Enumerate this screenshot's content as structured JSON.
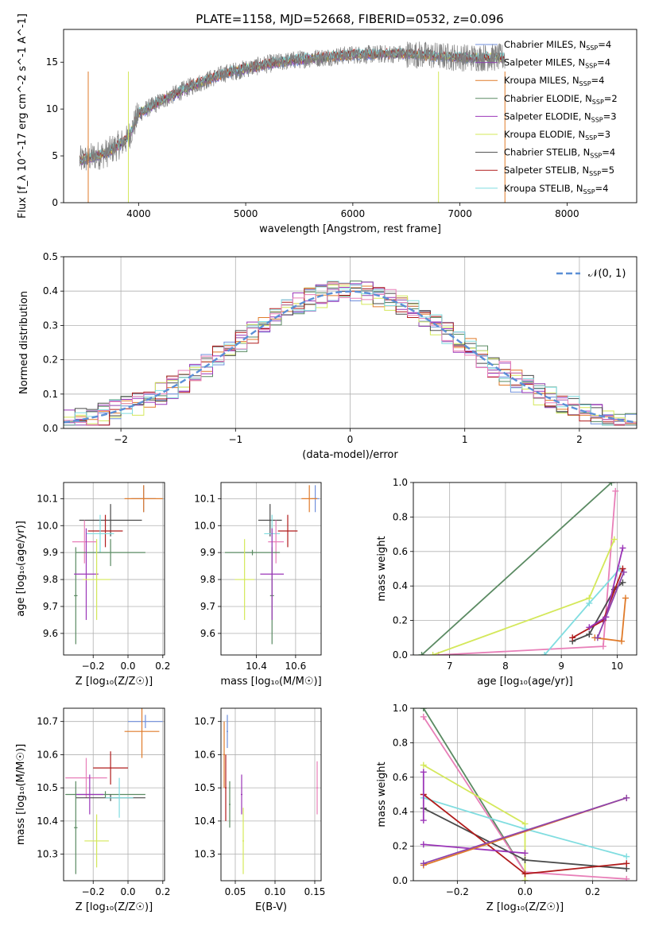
{
  "title": "PLATE=1158, MJD=52668, FIBERID=0532, z=0.096",
  "colors": {
    "Chabrier MILES": "#6f8fdc",
    "Salpeter MILES": "#8e44ad",
    "Kroupa MILES": "#e07b2a",
    "Chabrier ELODIE": "#5a8a62",
    "Salpeter ELODIE": "#9b36b8",
    "Kroupa ELODIE": "#d4e85a",
    "Chabrier STELIB": "#4a4a4a",
    "Salpeter STELIB": "#b01c1c",
    "Kroupa STELIB": "#80dde0",
    "data": "#808080",
    "norm": "#5b8fd6",
    "pink": "#e87fb8"
  },
  "chart_data": [
    {
      "id": "spectrum",
      "type": "line",
      "xlabel": "wavelength [Angstrom, rest frame]",
      "ylabel": "Flux [f_λ 10^-17 erg cm^-2 s^-1 A^-1]",
      "xlim": [
        3300,
        8650
      ],
      "ylim": [
        0,
        18.5
      ],
      "xticks": [
        "4000",
        "5000",
        "6000",
        "7000",
        "8000"
      ],
      "yticks": [
        "0",
        "5",
        "10",
        "15"
      ],
      "legend": [
        {
          "label": "Chabrier MILES, N",
          "sub": "SSP",
          "suf": "=4",
          "color": "#6f8fdc"
        },
        {
          "label": "Salpeter MILES, N",
          "sub": "SSP",
          "suf": "=4",
          "color": "#8e44ad"
        },
        {
          "label": "Kroupa MILES, N",
          "sub": "SSP",
          "suf": "=4",
          "color": "#e07b2a"
        },
        {
          "label": "Chabrier ELODIE, N",
          "sub": "SSP",
          "suf": "=2",
          "color": "#5a8a62"
        },
        {
          "label": "Salpeter ELODIE, N",
          "sub": "SSP",
          "suf": "=3",
          "color": "#9b36b8"
        },
        {
          "label": "Kroupa ELODIE, N",
          "sub": "SSP",
          "suf": "=3",
          "color": "#d4e85a"
        },
        {
          "label": "Chabrier STELIB, N",
          "sub": "SSP",
          "suf": "=4",
          "color": "#4a4a4a"
        },
        {
          "label": "Salpeter STELIB, N",
          "sub": "SSP",
          "suf": "=5",
          "color": "#b01c1c"
        },
        {
          "label": "Kroupa STELIB, N",
          "sub": "SSP",
          "suf": "=4",
          "color": "#80dde0"
        }
      ],
      "continuum": [
        [
          3450,
          4.5
        ],
        [
          3700,
          5.3
        ],
        [
          3900,
          6.8
        ],
        [
          4000,
          9.5
        ],
        [
          4200,
          10.8
        ],
        [
          4500,
          12.5
        ],
        [
          4800,
          13.8
        ],
        [
          5000,
          14.3
        ],
        [
          5200,
          14.8
        ],
        [
          5500,
          15.3
        ],
        [
          6000,
          15.8
        ],
        [
          6500,
          15.9
        ],
        [
          7000,
          15.5
        ],
        [
          7300,
          15.5
        ],
        [
          7420,
          15.5
        ]
      ],
      "data_extent": [
        3450,
        7420
      ]
    },
    {
      "id": "residuals",
      "type": "line",
      "xlabel": "(data-model)/error",
      "ylabel": "Normed distribution",
      "xlim": [
        -2.5,
        2.5
      ],
      "ylim": [
        0,
        0.5
      ],
      "xticks": [
        "−2",
        "−1",
        "0",
        "1",
        "2"
      ],
      "yticks": [
        "0.0",
        "0.1",
        "0.2",
        "0.3",
        "0.4",
        "0.5"
      ],
      "legend_label": "𝒩(0, 1)",
      "bin_width": 0.1
    },
    {
      "id": "age-vs-Z",
      "type": "scatter",
      "xlabel": "Z [log₁₀(Z/Z☉)]",
      "ylabel": "age  [log₁₀(age/yr)]",
      "xlim": [
        -0.37,
        0.21
      ],
      "ylim": [
        9.52,
        10.16
      ],
      "xticks": [
        "−0.2",
        "0.0",
        "0.2"
      ],
      "yticks": [
        "9.6",
        "9.7",
        "9.8",
        "9.9",
        "10.0",
        "10.1"
      ],
      "points": [
        {
          "model": "Chabrier MILES",
          "x": 0.09,
          "xerr": 0.07,
          "y": 10.1,
          "yerr": 0.05
        },
        {
          "model": "Kroupa MILES",
          "x": 0.09,
          "xerr": 0.11,
          "y": 10.1,
          "yerr": 0.05
        },
        {
          "model": "Chabrier STELIB",
          "x": -0.1,
          "xerr": 0.18,
          "y": 10.02,
          "yerr": 0.06
        },
        {
          "model": "Salpeter STELIB",
          "x": -0.13,
          "xerr": 0.1,
          "y": 9.98,
          "yerr": 0.06
        },
        {
          "model": "Kroupa STELIB",
          "x": -0.16,
          "xerr": 0.08,
          "y": 9.97,
          "yerr": 0.07
        },
        {
          "model": "pink",
          "x": -0.25,
          "xerr": 0.07,
          "y": 9.94,
          "yerr": 0.08
        },
        {
          "model": "Chabrier ELODIE",
          "x": -0.1,
          "xerr": 0.2,
          "y": 9.9,
          "yerr": 0.05
        },
        {
          "model": "Chabrier ELODIE",
          "x": -0.3,
          "xerr": 0.01,
          "y": 9.74,
          "yerr": 0.18
        },
        {
          "model": "Salpeter ELODIE",
          "x": -0.24,
          "xerr": 0.07,
          "y": 9.82,
          "yerr": 0.17
        },
        {
          "model": "Kroupa ELODIE",
          "x": -0.18,
          "xerr": 0.08,
          "y": 9.8,
          "yerr": 0.15
        }
      ]
    },
    {
      "id": "age-vs-mass",
      "type": "scatter",
      "xlabel": "mass [log₁₀(M/M☉)]",
      "ylabel": "",
      "xlim": [
        10.22,
        10.73
      ],
      "ylim": [
        9.52,
        10.16
      ],
      "xticks": [
        "10.4",
        "10.6"
      ],
      "yticks": [
        "9.6",
        "9.7",
        "9.8",
        "9.9",
        "10.0",
        "10.1"
      ],
      "points": [
        {
          "model": "Chabrier MILES",
          "x": 10.7,
          "xerr": 0.02,
          "y": 10.1,
          "yerr": 0.05
        },
        {
          "model": "Kroupa MILES",
          "x": 10.67,
          "xerr": 0.04,
          "y": 10.1,
          "yerr": 0.05
        },
        {
          "model": "Chabrier STELIB",
          "x": 10.47,
          "xerr": 0.06,
          "y": 10.02,
          "yerr": 0.06
        },
        {
          "model": "Salpeter STELIB",
          "x": 10.56,
          "xerr": 0.05,
          "y": 9.98,
          "yerr": 0.06
        },
        {
          "model": "Kroupa STELIB",
          "x": 10.48,
          "xerr": 0.04,
          "y": 9.97,
          "yerr": 0.07
        },
        {
          "model": "pink",
          "x": 10.5,
          "xerr": 0.04,
          "y": 9.94,
          "yerr": 0.08
        },
        {
          "model": "Chabrier ELODIE",
          "x": 10.48,
          "xerr": 0.01,
          "y": 9.74,
          "yerr": 0.18
        },
        {
          "model": "Chabrier ELODIE",
          "x": 10.38,
          "xerr": 0.14,
          "y": 9.9,
          "yerr": 0.01
        },
        {
          "model": "Salpeter ELODIE",
          "x": 10.48,
          "xerr": 0.06,
          "y": 9.82,
          "yerr": 0.17
        },
        {
          "model": "Kroupa ELODIE",
          "x": 10.34,
          "xerr": 0.05,
          "y": 9.8,
          "yerr": 0.15
        }
      ]
    },
    {
      "id": "mass-weight-vs-age",
      "type": "line",
      "xlabel": "age  [log₁₀(age/yr)]",
      "ylabel": "mass weight",
      "xlim": [
        6.35,
        10.35
      ],
      "ylim": [
        0,
        1
      ],
      "xticks": [
        "7",
        "8",
        "9",
        "10"
      ],
      "yticks": [
        "0.0",
        "0.2",
        "0.4",
        "0.6",
        "0.8",
        "1.0"
      ],
      "series": [
        {
          "model": "Chabrier ELODIE",
          "x": [
            6.5,
            9.9
          ],
          "y": [
            0.0,
            1.0
          ]
        },
        {
          "model": "pink",
          "x": [
            6.8,
            9.75,
            9.97
          ],
          "y": [
            0.0,
            0.05,
            0.95
          ]
        },
        {
          "model": "Kroupa ELODIE",
          "x": [
            6.7,
            9.5,
            9.95
          ],
          "y": [
            0.0,
            0.33,
            0.67
          ]
        },
        {
          "model": "Kroupa STELIB",
          "x": [
            8.7,
            9.5,
            10.05
          ],
          "y": [
            0.0,
            0.3,
            0.5
          ]
        },
        {
          "model": "Chabrier STELIB",
          "x": [
            9.2,
            9.5,
            9.95,
            10.1
          ],
          "y": [
            0.08,
            0.12,
            0.38,
            0.42
          ]
        },
        {
          "model": "Salpeter STELIB",
          "x": [
            9.2,
            9.75,
            10.1
          ],
          "y": [
            0.1,
            0.2,
            0.5
          ]
        },
        {
          "model": "Salpeter ELODIE",
          "x": [
            9.5,
            9.8,
            10.1
          ],
          "y": [
            0.16,
            0.22,
            0.62
          ]
        },
        {
          "model": "Kroupa MILES",
          "x": [
            9.6,
            10.08,
            10.15
          ],
          "y": [
            0.1,
            0.08,
            0.33
          ]
        },
        {
          "model": "Salpeter MILES",
          "x": [
            9.65,
            10.12
          ],
          "y": [
            0.1,
            0.48
          ]
        }
      ]
    },
    {
      "id": "mass-vs-Z",
      "type": "scatter",
      "xlabel": "Z [log₁₀(Z/Z☉)]",
      "ylabel": "mass [log₁₀(M/M☉)]",
      "xlim": [
        -0.37,
        0.21
      ],
      "ylim": [
        10.22,
        10.74
      ],
      "xticks": [
        "−0.2",
        "0.0",
        "0.2"
      ],
      "yticks": [
        "10.3",
        "10.4",
        "10.5",
        "10.6",
        "10.7"
      ],
      "points": [
        {
          "model": "Chabrier MILES",
          "x": 0.1,
          "xerr": 0.1,
          "y": 10.7,
          "yerr": 0.02
        },
        {
          "model": "Kroupa MILES",
          "x": 0.08,
          "xerr": 0.1,
          "y": 10.67,
          "yerr": 0.08
        },
        {
          "model": "Salpeter STELIB",
          "x": -0.1,
          "xerr": 0.1,
          "y": 10.56,
          "yerr": 0.05
        },
        {
          "model": "pink",
          "x": -0.24,
          "xerr": 0.12,
          "y": 10.53,
          "yerr": 0.06
        },
        {
          "model": "Chabrier ELODIE",
          "x": -0.13,
          "xerr": 0.23,
          "y": 10.48,
          "yerr": 0.01
        },
        {
          "model": "Chabrier STELIB",
          "x": -0.1,
          "xerr": 0.2,
          "y": 10.47,
          "yerr": 0.01
        },
        {
          "model": "Kroupa STELIB",
          "x": -0.05,
          "xerr": 0.08,
          "y": 10.47,
          "yerr": 0.06
        },
        {
          "model": "Salpeter ELODIE",
          "x": -0.22,
          "xerr": 0.08,
          "y": 10.48,
          "yerr": 0.06
        },
        {
          "model": "Chabrier ELODIE",
          "x": -0.3,
          "xerr": 0.01,
          "y": 10.38,
          "yerr": 0.14
        },
        {
          "model": "Kroupa ELODIE",
          "x": -0.18,
          "xerr": 0.07,
          "y": 10.34,
          "yerr": 0.08
        }
      ]
    },
    {
      "id": "mass-vs-ebv",
      "type": "scatter",
      "xlabel": "E(B-V)",
      "ylabel": "",
      "xlim": [
        0.032,
        0.158
      ],
      "ylim": [
        10.22,
        10.74
      ],
      "xticks": [
        "0.05",
        "0.10",
        "0.15"
      ],
      "yticks": [
        "10.3",
        "10.4",
        "10.5",
        "10.6",
        "10.7"
      ],
      "points": [
        {
          "model": "Chabrier MILES",
          "x": 0.04,
          "xerr": 0.001,
          "y": 10.67,
          "yerr": 0.05
        },
        {
          "model": "Kroupa MILES",
          "x": 0.036,
          "xerr": 0.001,
          "y": 10.6,
          "yerr": 0.1
        },
        {
          "model": "Salpeter STELIB",
          "x": 0.038,
          "xerr": 0.001,
          "y": 10.5,
          "yerr": 0.1
        },
        {
          "model": "Chabrier ELODIE",
          "x": 0.043,
          "xerr": 0.001,
          "y": 10.45,
          "yerr": 0.07
        },
        {
          "model": "Salpeter ELODIE",
          "x": 0.058,
          "xerr": 0.001,
          "y": 10.48,
          "yerr": 0.06
        },
        {
          "model": "Kroupa ELODIE",
          "x": 0.06,
          "xerr": 0.001,
          "y": 10.34,
          "yerr": 0.1
        },
        {
          "model": "pink",
          "x": 0.153,
          "xerr": 0.001,
          "y": 10.5,
          "yerr": 0.08
        }
      ]
    },
    {
      "id": "mass-weight-vs-Z",
      "type": "line",
      "xlabel": "Z [log₁₀(Z/Z☉)]",
      "ylabel": "mass weight",
      "xlim": [
        -0.33,
        0.33
      ],
      "ylim": [
        0,
        1
      ],
      "xticks": [
        "−0.2",
        "0.0",
        "0.2"
      ],
      "yticks": [
        "0.0",
        "0.2",
        "0.4",
        "0.6",
        "0.8",
        "1.0"
      ],
      "series": [
        {
          "model": "Chabrier ELODIE",
          "x": [
            -0.3,
            0.0,
            0.0
          ],
          "y": [
            1.0,
            0.05,
            0.0
          ]
        },
        {
          "model": "pink",
          "x": [
            -0.3,
            0.0,
            0.3
          ],
          "y": [
            0.95,
            0.05,
            0.01
          ]
        },
        {
          "model": "Kroupa ELODIE",
          "x": [
            -0.3,
            0.0,
            0.0
          ],
          "y": [
            0.67,
            0.33,
            0.0
          ]
        },
        {
          "model": "Kroupa STELIB",
          "x": [
            -0.3,
            0.0,
            0.3
          ],
          "y": [
            0.48,
            0.3,
            0.14
          ]
        },
        {
          "model": "Chabrier STELIB",
          "x": [
            -0.3,
            0.0,
            0.3
          ],
          "y": [
            0.42,
            0.12,
            0.07
          ]
        },
        {
          "model": "Salpeter STELIB",
          "x": [
            -0.3,
            0.0,
            0.3
          ],
          "y": [
            0.5,
            0.04,
            0.1
          ]
        },
        {
          "model": "Salpeter ELODIE",
          "x": [
            -0.3,
            0.0
          ],
          "y": [
            0.21,
            0.16
          ]
        },
        {
          "model": "Kroupa MILES",
          "x": [
            -0.3,
            0.3
          ],
          "y": [
            0.09,
            0.48
          ]
        },
        {
          "model": "Salpeter MILES",
          "x": [
            -0.3,
            0.3
          ],
          "y": [
            0.1,
            0.48
          ]
        },
        {
          "model": "Salpeter ELODIE",
          "x": [
            -0.3,
            -0.3
          ],
          "y": [
            0.35,
            0.63
          ]
        }
      ]
    }
  ]
}
